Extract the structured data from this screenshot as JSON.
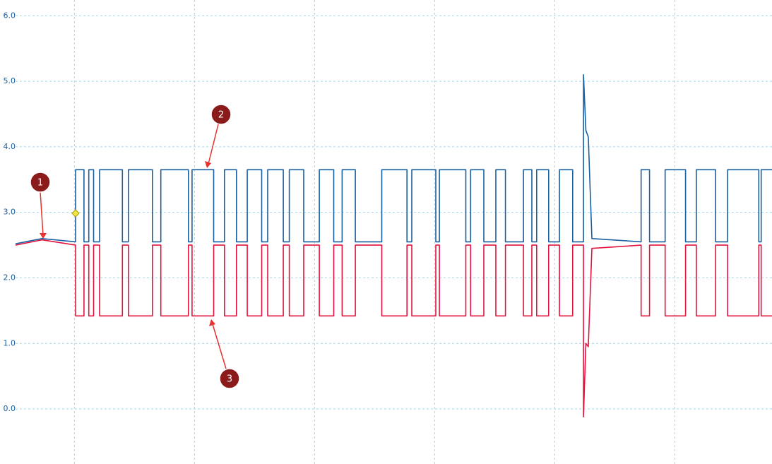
{
  "chart_data": {
    "type": "line",
    "xlim": [
      -0.49,
      5.81
    ],
    "xticks": [
      0,
      1,
      2,
      3,
      4,
      5
    ],
    "ylim": [
      -0.84,
      6.24
    ],
    "yticks": [
      {
        "value": 0,
        "label": "0.0"
      },
      {
        "value": 1,
        "label": "1.0"
      },
      {
        "value": 2,
        "label": "2.0"
      },
      {
        "value": 3,
        "label": "3.0"
      },
      {
        "value": 4,
        "label": "4.0"
      },
      {
        "value": 5,
        "label": "5.0"
      },
      {
        "value": 6,
        "label": "6.0"
      }
    ],
    "grid": true,
    "annotations": [
      "1",
      "2",
      "3"
    ],
    "x": [
      -0.49,
      -0.27,
      0.01,
      0.01,
      0.08,
      0.08,
      0.12,
      0.12,
      0.16,
      0.16,
      0.21,
      0.21,
      0.4,
      0.4,
      0.45,
      0.45,
      0.65,
      0.65,
      0.72,
      0.72,
      0.95,
      0.95,
      0.98,
      0.98,
      1.16,
      1.16,
      1.25,
      1.25,
      1.35,
      1.35,
      1.44,
      1.44,
      1.56,
      1.56,
      1.61,
      1.61,
      1.74,
      1.74,
      1.79,
      1.79,
      1.91,
      1.91,
      2.04,
      2.04,
      2.16,
      2.16,
      2.23,
      2.23,
      2.34,
      2.34,
      2.56,
      2.56,
      2.77,
      2.77,
      2.81,
      2.81,
      3.01,
      3.01,
      3.04,
      3.04,
      3.26,
      3.26,
      3.3,
      3.3,
      3.41,
      3.41,
      3.51,
      3.51,
      3.59,
      3.59,
      3.74,
      3.74,
      3.81,
      3.81,
      3.85,
      3.85,
      3.95,
      3.95,
      4.04,
      4.04,
      4.15,
      4.15,
      4.24,
      4.24,
      4.26,
      4.28,
      4.31,
      4.72,
      4.72,
      4.79,
      4.79,
      4.92,
      4.92,
      5.09,
      5.09,
      5.18,
      5.18,
      5.34,
      5.34,
      5.44,
      5.44,
      5.7,
      5.7,
      5.72,
      5.72,
      5.81
    ],
    "series": [
      {
        "color": "#1a5fa0",
        "values": [
          2.52,
          2.6,
          2.55,
          3.65,
          3.65,
          2.55,
          2.55,
          3.65,
          3.65,
          2.55,
          2.55,
          3.65,
          3.65,
          2.55,
          2.55,
          3.65,
          3.65,
          2.55,
          2.55,
          3.65,
          3.65,
          2.55,
          2.55,
          3.65,
          3.65,
          2.55,
          2.55,
          3.65,
          3.65,
          2.55,
          2.55,
          3.65,
          3.65,
          2.55,
          2.55,
          3.65,
          3.65,
          2.55,
          2.55,
          3.65,
          3.65,
          2.55,
          2.55,
          3.65,
          3.65,
          2.55,
          2.55,
          3.65,
          3.65,
          2.55,
          2.55,
          3.65,
          3.65,
          2.55,
          2.55,
          3.65,
          3.65,
          2.55,
          2.55,
          3.65,
          3.65,
          2.55,
          2.55,
          3.65,
          3.65,
          2.55,
          2.55,
          3.65,
          3.65,
          2.55,
          2.55,
          3.65,
          3.65,
          2.55,
          2.55,
          3.65,
          3.65,
          2.55,
          2.55,
          3.65,
          3.65,
          2.55,
          2.55,
          5.1,
          4.25,
          4.15,
          2.6,
          2.55,
          3.65,
          3.65,
          2.55,
          2.55,
          3.65,
          3.65,
          2.55,
          2.55,
          3.65,
          3.65,
          2.55,
          2.55,
          3.65,
          3.65,
          2.55,
          2.55,
          3.65,
          3.65
        ]
      },
      {
        "color": "#e0143c",
        "values": [
          2.5,
          2.58,
          2.5,
          1.42,
          1.42,
          2.5,
          2.5,
          1.42,
          1.42,
          2.5,
          2.5,
          1.42,
          1.42,
          2.5,
          2.5,
          1.42,
          1.42,
          2.5,
          2.5,
          1.42,
          1.42,
          2.5,
          2.5,
          1.42,
          1.42,
          2.5,
          2.5,
          1.42,
          1.42,
          2.5,
          2.5,
          1.42,
          1.42,
          2.5,
          2.5,
          1.42,
          1.42,
          2.5,
          2.5,
          1.42,
          1.42,
          2.5,
          2.5,
          1.42,
          1.42,
          2.5,
          2.5,
          1.42,
          1.42,
          2.5,
          2.5,
          1.42,
          1.42,
          2.5,
          2.5,
          1.42,
          1.42,
          2.5,
          2.5,
          1.42,
          1.42,
          2.5,
          2.5,
          1.42,
          1.42,
          2.5,
          2.5,
          1.42,
          1.42,
          2.5,
          2.5,
          1.42,
          1.42,
          2.5,
          2.5,
          1.42,
          1.42,
          2.5,
          2.5,
          1.42,
          1.42,
          2.5,
          2.5,
          -0.12,
          1.0,
          0.95,
          2.45,
          2.5,
          1.42,
          1.42,
          2.5,
          2.5,
          1.42,
          1.42,
          2.5,
          2.5,
          1.42,
          1.42,
          2.5,
          2.5,
          1.42,
          1.42,
          2.5,
          2.5,
          1.42,
          1.42
        ]
      }
    ]
  }
}
